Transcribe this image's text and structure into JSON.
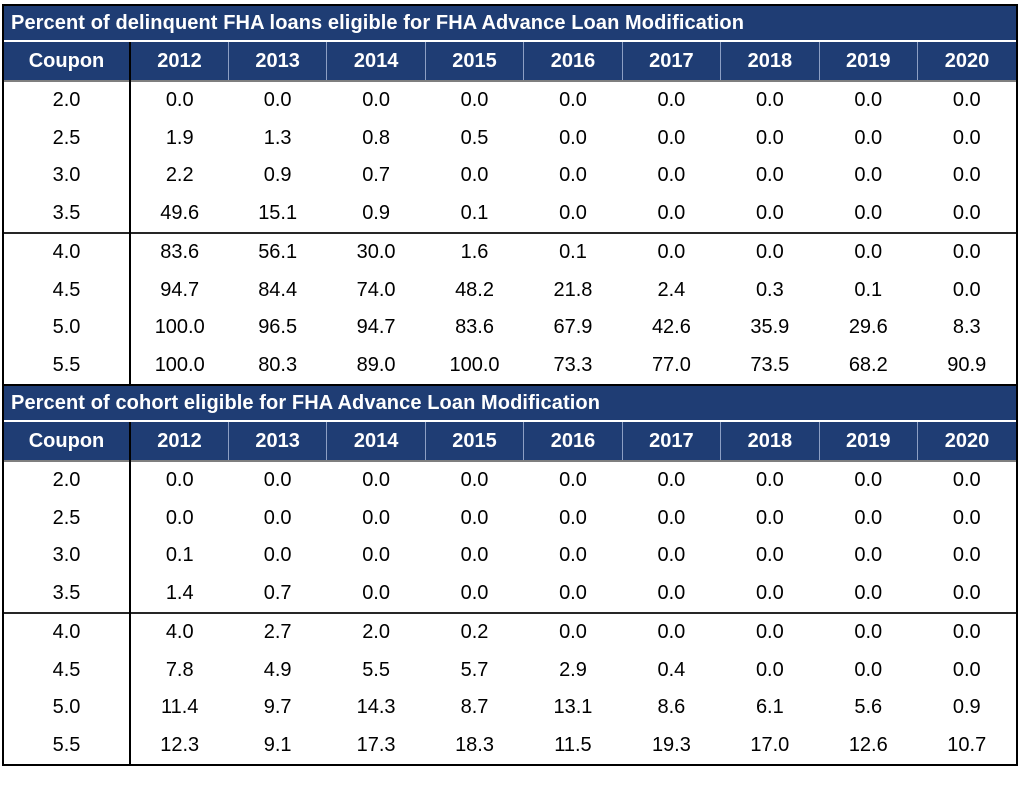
{
  "colors": {
    "header_navy": "#1F3D74",
    "header_text": "#ffffff",
    "body_text": "#000000",
    "outer_border": "#000000",
    "header_column_divider": "#8C9FC4",
    "under_header_line": "#7f7f7f",
    "group_separator": "#262626"
  },
  "columns": [
    "Coupon",
    "2012",
    "2013",
    "2014",
    "2015",
    "2016",
    "2017",
    "2018",
    "2019",
    "2020"
  ],
  "tables": [
    {
      "title": "Percent of delinquent FHA loans eligible for FHA Advance Loan Modification",
      "rows": [
        {
          "coupon": "2.0",
          "values": [
            "0.0",
            "0.0",
            "0.0",
            "0.0",
            "0.0",
            "0.0",
            "0.0",
            "0.0",
            "0.0"
          ]
        },
        {
          "coupon": "2.5",
          "values": [
            "1.9",
            "1.3",
            "0.8",
            "0.5",
            "0.0",
            "0.0",
            "0.0",
            "0.0",
            "0.0"
          ]
        },
        {
          "coupon": "3.0",
          "values": [
            "2.2",
            "0.9",
            "0.7",
            "0.0",
            "0.0",
            "0.0",
            "0.0",
            "0.0",
            "0.0"
          ]
        },
        {
          "coupon": "3.5",
          "values": [
            "49.6",
            "15.1",
            "0.9",
            "0.1",
            "0.0",
            "0.0",
            "0.0",
            "0.0",
            "0.0"
          ]
        },
        {
          "coupon": "4.0",
          "values": [
            "83.6",
            "56.1",
            "30.0",
            "1.6",
            "0.1",
            "0.0",
            "0.0",
            "0.0",
            "0.0"
          ]
        },
        {
          "coupon": "4.5",
          "values": [
            "94.7",
            "84.4",
            "74.0",
            "48.2",
            "21.8",
            "2.4",
            "0.3",
            "0.1",
            "0.0"
          ]
        },
        {
          "coupon": "5.0",
          "values": [
            "100.0",
            "96.5",
            "94.7",
            "83.6",
            "67.9",
            "42.6",
            "35.9",
            "29.6",
            "8.3"
          ]
        },
        {
          "coupon": "5.5",
          "values": [
            "100.0",
            "80.3",
            "89.0",
            "100.0",
            "73.3",
            "77.0",
            "73.5",
            "68.2",
            "90.9"
          ]
        }
      ]
    },
    {
      "title": "Percent of cohort eligible for FHA Advance Loan Modification",
      "rows": [
        {
          "coupon": "2.0",
          "values": [
            "0.0",
            "0.0",
            "0.0",
            "0.0",
            "0.0",
            "0.0",
            "0.0",
            "0.0",
            "0.0"
          ]
        },
        {
          "coupon": "2.5",
          "values": [
            "0.0",
            "0.0",
            "0.0",
            "0.0",
            "0.0",
            "0.0",
            "0.0",
            "0.0",
            "0.0"
          ]
        },
        {
          "coupon": "3.0",
          "values": [
            "0.1",
            "0.0",
            "0.0",
            "0.0",
            "0.0",
            "0.0",
            "0.0",
            "0.0",
            "0.0"
          ]
        },
        {
          "coupon": "3.5",
          "values": [
            "1.4",
            "0.7",
            "0.0",
            "0.0",
            "0.0",
            "0.0",
            "0.0",
            "0.0",
            "0.0"
          ]
        },
        {
          "coupon": "4.0",
          "values": [
            "4.0",
            "2.7",
            "2.0",
            "0.2",
            "0.0",
            "0.0",
            "0.0",
            "0.0",
            "0.0"
          ]
        },
        {
          "coupon": "4.5",
          "values": [
            "7.8",
            "4.9",
            "5.5",
            "5.7",
            "2.9",
            "0.4",
            "0.0",
            "0.0",
            "0.0"
          ]
        },
        {
          "coupon": "5.0",
          "values": [
            "11.4",
            "9.7",
            "14.3",
            "8.7",
            "13.1",
            "8.6",
            "6.1",
            "5.6",
            "0.9"
          ]
        },
        {
          "coupon": "5.5",
          "values": [
            "12.3",
            "9.1",
            "17.3",
            "18.3",
            "11.5",
            "19.3",
            "17.0",
            "12.6",
            "10.7"
          ]
        }
      ]
    }
  ]
}
